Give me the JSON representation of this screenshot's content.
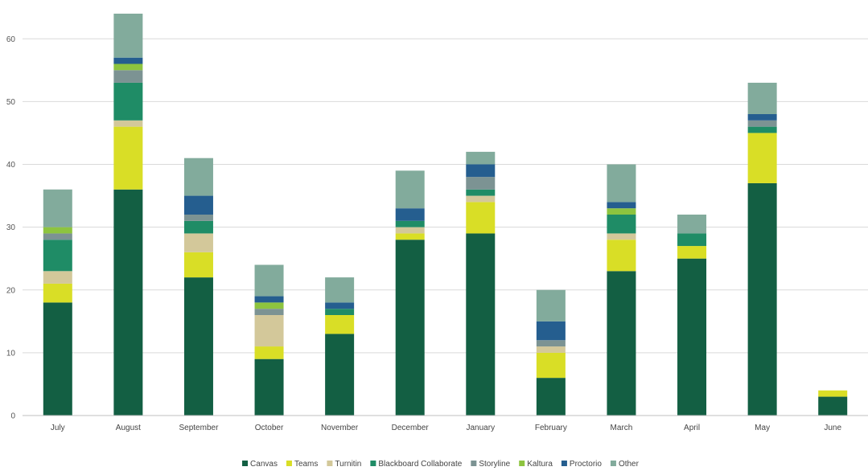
{
  "chart_data": {
    "type": "bar",
    "stacked": true,
    "categories": [
      "July",
      "August",
      "September",
      "October",
      "November",
      "December",
      "January",
      "February",
      "March",
      "April",
      "May",
      "June"
    ],
    "ylim": [
      0,
      64
    ],
    "yticks": [
      0,
      10,
      20,
      30,
      40,
      50,
      60
    ],
    "grid": true,
    "legend_position": "bottom",
    "series": [
      {
        "name": "Canvas",
        "color": "#135f43",
        "values": [
          18,
          36,
          22,
          9,
          13,
          28,
          29,
          6,
          23,
          25,
          37,
          3
        ]
      },
      {
        "name": "Teams",
        "color": "#d9de26",
        "values": [
          3,
          10,
          4,
          2,
          3,
          1,
          5,
          4,
          5,
          2,
          8,
          1
        ]
      },
      {
        "name": "Turnitin",
        "color": "#d3c89a",
        "values": [
          2,
          1,
          3,
          5,
          0,
          1,
          1,
          1,
          1,
          0,
          0,
          0
        ]
      },
      {
        "name": "Blackboard Collaborate",
        "color": "#1f8c66",
        "values": [
          5,
          6,
          2,
          0,
          1,
          1,
          1,
          0,
          3,
          2,
          1,
          0
        ]
      },
      {
        "name": "Storyline",
        "color": "#7c9393",
        "values": [
          1,
          2,
          1,
          1,
          0,
          0,
          2,
          1,
          0,
          0,
          1,
          0
        ]
      },
      {
        "name": "Kaltura",
        "color": "#8dc43f",
        "values": [
          1,
          1,
          0,
          1,
          0,
          0,
          0,
          0,
          1,
          0,
          0,
          0
        ]
      },
      {
        "name": "Proctorio",
        "color": "#255e8f",
        "values": [
          0,
          1,
          3,
          1,
          1,
          2,
          2,
          3,
          1,
          0,
          1,
          0
        ]
      },
      {
        "name": "Other",
        "color": "#82ab9c",
        "values": [
          6,
          7,
          6,
          5,
          4,
          6,
          2,
          5,
          6,
          3,
          5,
          0
        ]
      }
    ]
  }
}
